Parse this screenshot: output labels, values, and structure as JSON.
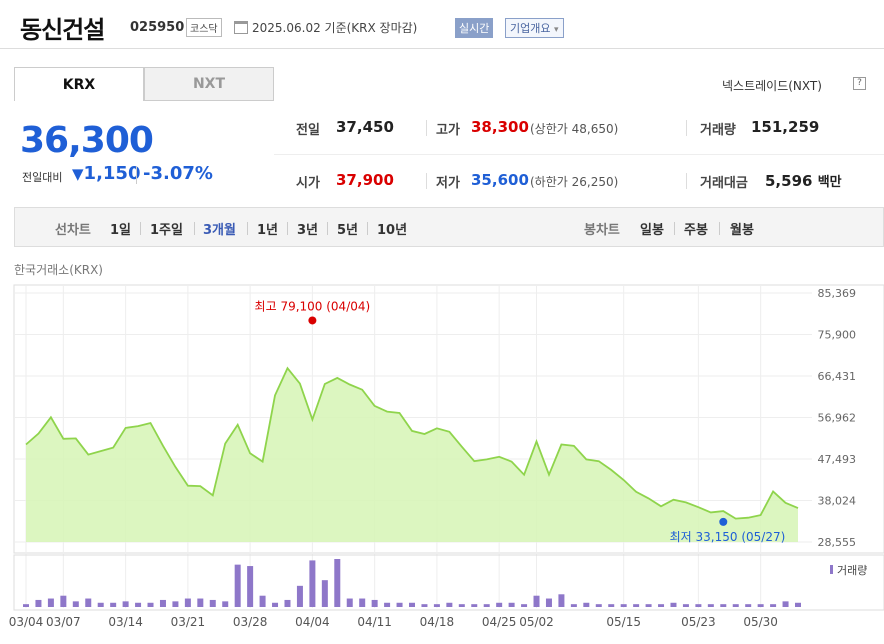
{
  "header": {
    "title": "동신건설",
    "code": "025950",
    "market": "코스닥",
    "date": "2025.06.02",
    "basis": "기준(KRX 장마감)",
    "realtime_btn": "실시간",
    "company_btn": "기업개요",
    "company_btn_arrow": "▾"
  },
  "tabs": [
    {
      "label": "KRX"
    },
    {
      "label": "NXT"
    }
  ],
  "nxt_link": "넥스트레이드(NXT)",
  "help": "?",
  "quote": {
    "price": "36,300",
    "prev_label": "전일대비",
    "change": "1,150",
    "change_arrow": "▼",
    "change_pct": "-3.07%"
  },
  "stats": {
    "prev_close": {
      "label": "전일",
      "value": "37,450"
    },
    "high": {
      "label": "고가",
      "value": "38,300",
      "sub_label": "(상한가",
      "sub_value": "48,650)"
    },
    "volume": {
      "label": "거래량",
      "value": "151,259"
    },
    "open": {
      "label": "시가",
      "value": "37,900"
    },
    "low": {
      "label": "저가",
      "value": "35,600",
      "sub_label": "(하한가",
      "sub_value": "26,250)"
    },
    "amount": {
      "label": "거래대금",
      "value": "5,596",
      "unit": "백만"
    }
  },
  "range_bar": {
    "line_label": "선차트",
    "periods": [
      "1일",
      "1주일",
      "3개월",
      "1년",
      "3년",
      "5년",
      "10년"
    ],
    "selected": "3개월",
    "candle_label": "봉차트",
    "candles": [
      "일봉",
      "주봉",
      "월봉"
    ]
  },
  "chart_source": "한국거래소(KRX)",
  "colors": {
    "accent": "#1f5fd6",
    "up": "#d90000",
    "line": "#8fd44c",
    "area": "#d6f5b5",
    "volume": "#8e77c9"
  },
  "chart_data": {
    "type": "area",
    "ylim": [
      28555,
      85369
    ],
    "yticks": [
      "85,369",
      "75,900",
      "66,431",
      "56,962",
      "47,493",
      "38,024",
      "28,555"
    ],
    "x_tick_labels": [
      "03/04",
      "03/07",
      "03/14",
      "03/21",
      "03/28",
      "04/04",
      "04/11",
      "04/18",
      "04/25",
      "05/02",
      "05/15",
      "05/23",
      "05/30"
    ],
    "x_tick_index": [
      0,
      3,
      8,
      13,
      18,
      23,
      28,
      33,
      38,
      41,
      48,
      54,
      59
    ],
    "high_annotation": {
      "label": "최고",
      "value": "79,100",
      "date": "(04/04)",
      "index": 23,
      "y": 79100
    },
    "low_annotation": {
      "label": "최저",
      "value": "33,150",
      "date": "(05/27)",
      "index": 56,
      "y": 33150
    },
    "price": [
      50800,
      53300,
      57000,
      52100,
      52200,
      48500,
      49300,
      50100,
      54600,
      55000,
      55700,
      50500,
      45700,
      41400,
      41300,
      39200,
      51000,
      55300,
      48800,
      46900,
      62000,
      68200,
      64700,
      56500,
      64600,
      66000,
      64500,
      63300,
      59600,
      58300,
      58000,
      53900,
      53200,
      54500,
      53700,
      50300,
      47000,
      47400,
      48000,
      46900,
      43900,
      51500,
      43900,
      50800,
      50500,
      47400,
      47000,
      45000,
      42700,
      40000,
      38500,
      36700,
      38200,
      37600,
      36500,
      35300,
      35600,
      33900,
      34100,
      34700,
      40100,
      37500,
      36300
    ],
    "volume_label": "거래량",
    "volume": [
      2,
      5,
      6,
      8,
      4,
      6,
      3,
      3,
      4,
      3,
      3,
      5,
      4,
      6,
      6,
      5,
      4,
      30,
      29,
      8,
      3,
      5,
      15,
      33,
      19,
      34,
      6,
      6,
      5,
      3,
      3,
      3,
      2,
      2,
      3,
      2,
      2,
      2,
      3,
      3,
      2,
      8,
      6,
      9,
      2,
      3,
      2,
      2,
      2,
      2,
      2,
      2,
      3,
      2,
      2,
      2,
      2,
      2,
      2,
      2,
      2,
      4,
      3
    ]
  }
}
